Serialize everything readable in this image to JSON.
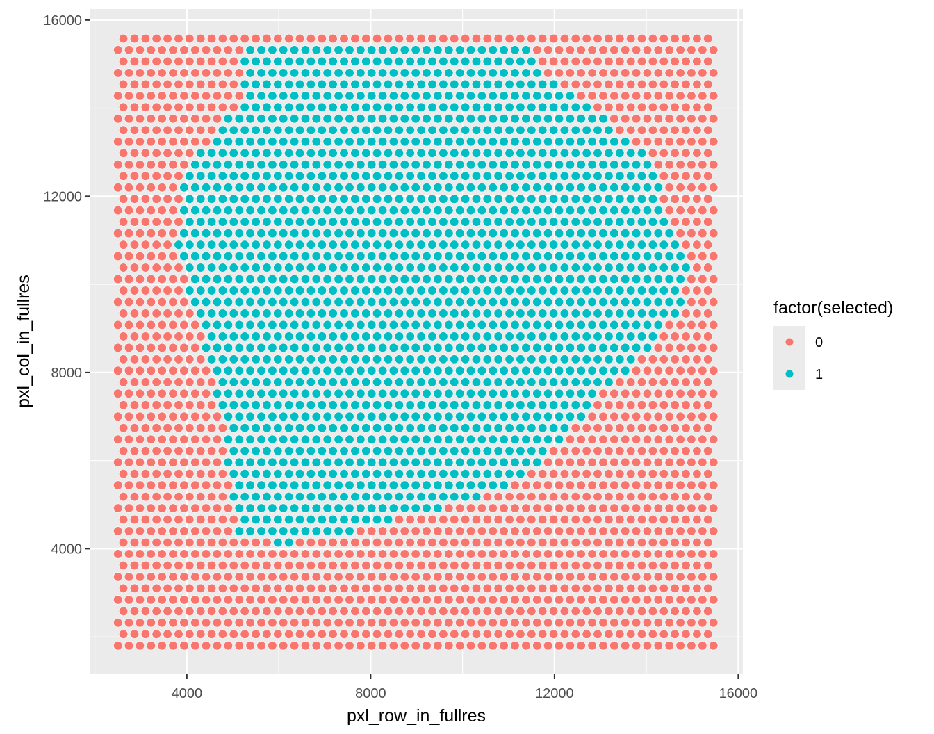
{
  "chart_data": {
    "type": "scatter",
    "title": "",
    "xlabel": "pxl_row_in_fullres",
    "ylabel": "pxl_col_in_fullres",
    "xlim": [
      1900,
      16100
    ],
    "ylim": [
      1150,
      16250
    ],
    "x_ticks": [
      4000,
      8000,
      12000,
      16000
    ],
    "x_tick_labels": [
      "4000",
      "8000",
      "12000",
      "16000"
    ],
    "y_ticks": [
      4000,
      8000,
      12000,
      16000
    ],
    "y_tick_labels": [
      "4000",
      "8000",
      "12000",
      "16000"
    ],
    "grid": true,
    "grid_layout": {
      "x_start": 2500,
      "x_step": 240,
      "x_count": 55,
      "y_start": 1800,
      "y_step": 260,
      "y_count": 54,
      "odd_row_x_offset": 120
    },
    "selected_region_outline": [
      [
        5200,
        15500
      ],
      [
        11300,
        15500
      ],
      [
        11700,
        14900
      ],
      [
        12400,
        14300
      ],
      [
        13400,
        13500
      ],
      [
        14200,
        12800
      ],
      [
        14400,
        11600
      ],
      [
        15000,
        10300
      ],
      [
        14700,
        9400
      ],
      [
        13900,
        8300
      ],
      [
        13000,
        7500
      ],
      [
        12200,
        6400
      ],
      [
        10800,
        5300
      ],
      [
        9400,
        4900
      ],
      [
        7600,
        4400
      ],
      [
        6200,
        4100
      ],
      [
        5100,
        4200
      ],
      [
        4800,
        6800
      ],
      [
        4400,
        8600
      ],
      [
        3800,
        10600
      ],
      [
        3900,
        12600
      ],
      [
        4700,
        13500
      ],
      [
        5200,
        14300
      ]
    ],
    "series": [
      {
        "name": "0",
        "color": "#F8766D"
      },
      {
        "name": "1",
        "color": "#00BFC4"
      }
    ],
    "legend": {
      "title": "factor(selected)",
      "placement": "right"
    }
  }
}
